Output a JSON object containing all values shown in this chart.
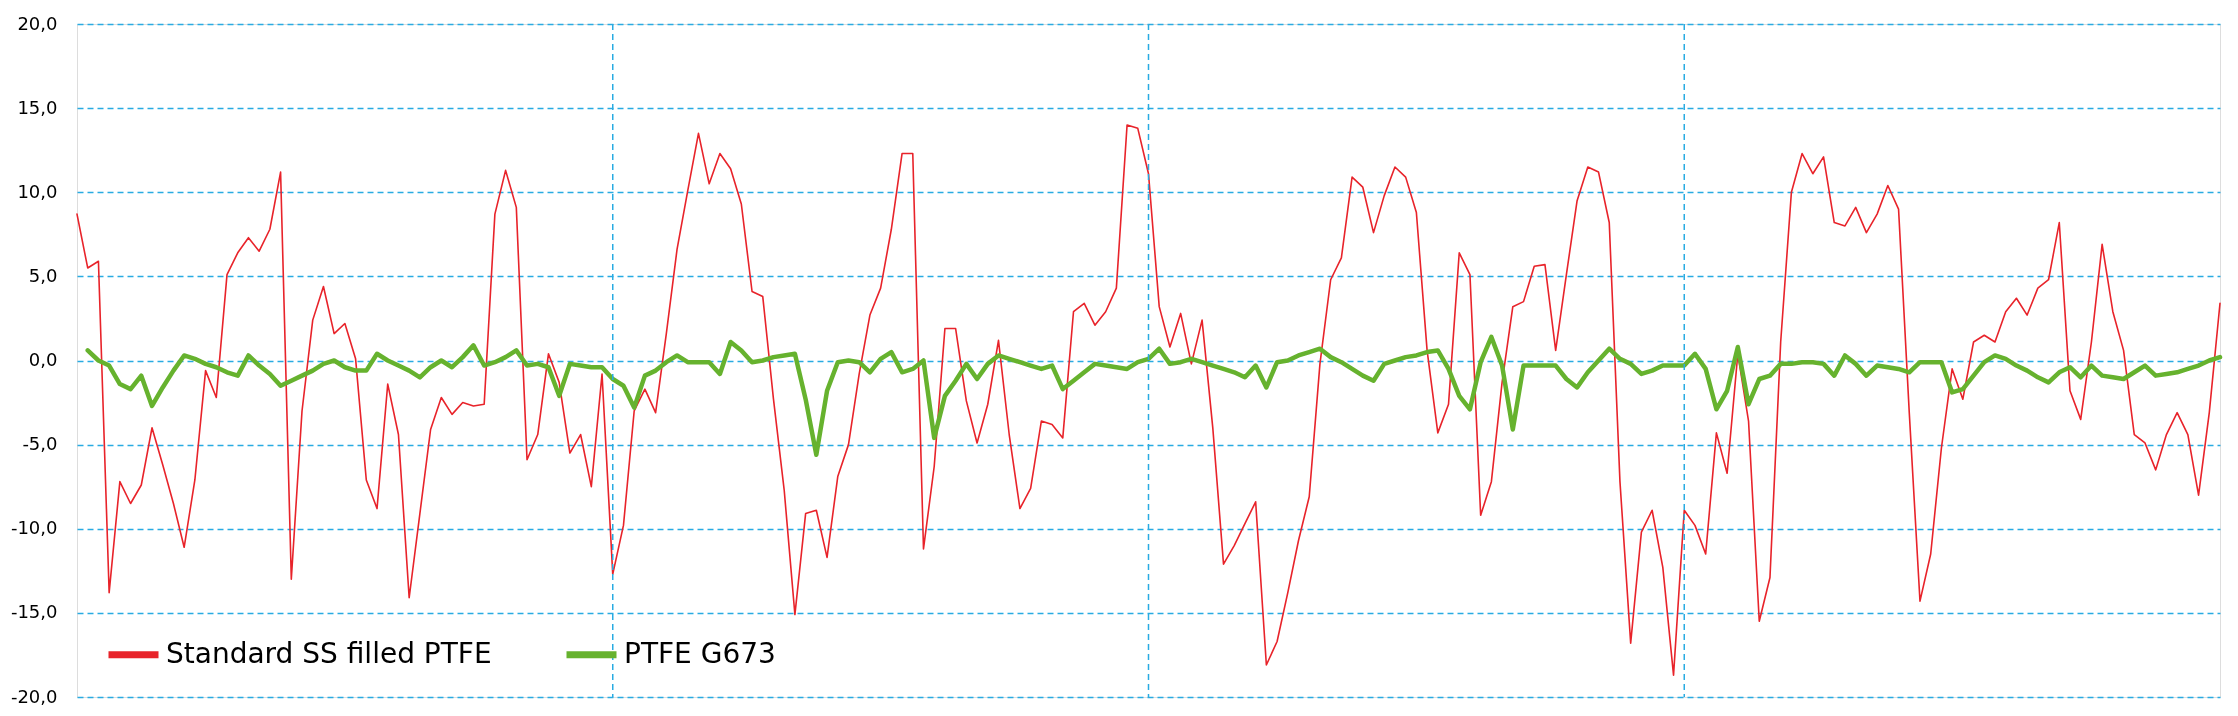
{
  "chart_data": {
    "type": "line",
    "categories": [
      null,
      null,
      null,
      null,
      null,
      null,
      null,
      null,
      null,
      null,
      null,
      null,
      null,
      null,
      null,
      null,
      null,
      null,
      null,
      null,
      null,
      null,
      null,
      null,
      null,
      null,
      null,
      null,
      null,
      null,
      null,
      null,
      null,
      null,
      null,
      null,
      null,
      null,
      null,
      null,
      null,
      null,
      null,
      null,
      null,
      null,
      null,
      null,
      null,
      null,
      null,
      null,
      null,
      null,
      null,
      null,
      null,
      null,
      null,
      null,
      null,
      null,
      null,
      null,
      null,
      null,
      null,
      null,
      null,
      null,
      null,
      null,
      null,
      null,
      null,
      null,
      null,
      null,
      null,
      null,
      null,
      null,
      null,
      null,
      null,
      null,
      null,
      null,
      null,
      null,
      null,
      null,
      null,
      null,
      null,
      null,
      null,
      null,
      null,
      null,
      null,
      null,
      null,
      null,
      null,
      null,
      null,
      null,
      null,
      null,
      null,
      null,
      null,
      null,
      null,
      null,
      null,
      null,
      null,
      null,
      null,
      null,
      null,
      null,
      null,
      null,
      null,
      null,
      null,
      null,
      null,
      null,
      null,
      null,
      null,
      null,
      null,
      null,
      null,
      null,
      null,
      null,
      null,
      null,
      null,
      null,
      null,
      null,
      null,
      null,
      null,
      null,
      null,
      null,
      null,
      null,
      null,
      null,
      null,
      null,
      null,
      null,
      null,
      null,
      null,
      null,
      null,
      null,
      null,
      null,
      null,
      null,
      null,
      null,
      null,
      null,
      null,
      null,
      null,
      null,
      null,
      null,
      null,
      null,
      null,
      null,
      null,
      null,
      null,
      null,
      null,
      null,
      null,
      null,
      null,
      null,
      null,
      null,
      null,
      null,
      null
    ],
    "ylim": [
      -20,
      20
    ],
    "yticks": [
      {
        "value": -20,
        "label": "-20,0"
      },
      {
        "value": -15,
        "label": "-15,0"
      },
      {
        "value": -10,
        "label": "-10,0"
      },
      {
        "value": -5,
        "label": "-5,0"
      },
      {
        "value": 0,
        "label": "0,0"
      },
      {
        "value": 5,
        "label": "5,0"
      },
      {
        "value": 10,
        "label": "10,0"
      },
      {
        "value": 15,
        "label": "15,0"
      },
      {
        "value": 20,
        "label": "20,0"
      }
    ],
    "tick_labels": "y",
    "grid": "y",
    "legend": "bottom left",
    "line_style": "solid",
    "series": [
      {
        "name": "Standard SS filled PTFE",
        "color": "#e8232a",
        "values": [
          8.7,
          5.5,
          5.9,
          -13.8,
          -7.2,
          -8.5,
          -7.4,
          -4.0,
          -6.2,
          -8.5,
          -11.1,
          -7.1,
          -0.6,
          -2.2,
          5.1,
          6.4,
          7.3,
          6.5,
          7.8,
          11.2,
          -13.0,
          -3.0,
          2.4,
          4.4,
          1.6,
          2.2,
          0.1,
          -7.1,
          -8.8,
          -1.4,
          -4.4,
          -14.1,
          -9.1,
          -4.1,
          -2.2,
          -3.2,
          -2.5,
          -2.7,
          -2.6,
          8.7,
          11.3,
          9.1,
          -5.9,
          -4.4,
          0.4,
          -1.3,
          -5.5,
          -4.4,
          -7.5,
          -0.8,
          -12.7,
          -9.8,
          -3.0,
          -1.7,
          -3.1,
          1.6,
          6.6,
          10.1,
          13.5,
          10.5,
          12.3,
          11.4,
          9.3,
          4.1,
          3.8,
          -2.3,
          -7.7,
          -15.1,
          -9.1,
          -8.9,
          -11.7,
          -6.9,
          -5.0,
          -0.8,
          2.7,
          4.3,
          7.8,
          12.3,
          12.3,
          -11.2,
          -6.3,
          1.9,
          1.9,
          -2.4,
          -4.9,
          -2.6,
          1.2,
          -4.4,
          -8.8,
          -7.6,
          -3.6,
          -3.8,
          -4.6,
          2.9,
          3.4,
          2.1,
          2.9,
          4.3,
          14.0,
          13.8,
          11.1,
          3.2,
          0.8,
          2.8,
          -0.2,
          2.4,
          -4.0,
          -12.1,
          -11.0,
          -9.7,
          -8.4,
          -18.1,
          -16.7,
          -13.8,
          -10.7,
          -8.1,
          -0.2,
          4.8,
          6.1,
          10.9,
          10.3,
          7.6,
          9.8,
          11.5,
          10.9,
          8.8,
          0.6,
          -4.3,
          -2.6,
          6.4,
          5.1,
          -9.2,
          -7.2,
          -1.3,
          3.2,
          3.5,
          5.6,
          5.7,
          0.6,
          5.1,
          9.5,
          11.5,
          11.2,
          8.2,
          -7.2,
          -16.8,
          -10.2,
          -8.9,
          -12.3,
          -18.7,
          -8.9,
          -9.8,
          -11.5,
          -4.3,
          -6.7,
          0.4,
          -3.6,
          -15.5,
          -12.9,
          1.1,
          10.0,
          12.3,
          11.1,
          12.1,
          8.2,
          8.0,
          9.1,
          7.6,
          8.7,
          10.4,
          9.0,
          -3.1,
          -14.3,
          -11.5,
          -5.2,
          -0.5,
          -2.3,
          1.1,
          1.5,
          1.1,
          2.9,
          3.7,
          2.7,
          4.3,
          4.8,
          8.2,
          -1.8,
          -3.5,
          1.1,
          6.9,
          2.9,
          0.6,
          -4.4,
          -4.9,
          -6.5,
          -4.4,
          -3.1,
          -4.4,
          -8.0,
          -3.1,
          3.4
        ]
      },
      {
        "name": "PTFE G673",
        "color": "#66b22e",
        "values": [
          null,
          0.6,
          0.0,
          -0.3,
          -1.4,
          -1.7,
          -0.9,
          -2.7,
          -1.6,
          -0.6,
          0.3,
          0.1,
          -0.2,
          -0.4,
          -0.7,
          -0.9,
          0.3,
          -0.3,
          -0.8,
          -1.5,
          -1.2,
          -0.9,
          -0.6,
          -0.2,
          0.0,
          -0.4,
          -0.6,
          -0.6,
          0.4,
          0.0,
          -0.3,
          -0.6,
          -1.0,
          -0.4,
          0.0,
          -0.4,
          0.2,
          0.9,
          -0.3,
          -0.1,
          0.2,
          0.6,
          -0.3,
          -0.2,
          -0.4,
          -2.1,
          -0.2,
          -0.3,
          -0.4,
          -0.4,
          -1.1,
          -1.5,
          -2.8,
          -0.9,
          -0.6,
          -0.1,
          0.3,
          -0.1,
          -0.1,
          -0.1,
          -0.8,
          1.1,
          0.6,
          -0.1,
          0.0,
          0.2,
          0.3,
          0.4,
          -2.3,
          -5.6,
          -1.8,
          -0.1,
          0.0,
          -0.1,
          -0.7,
          0.1,
          0.5,
          -0.7,
          -0.5,
          0.0,
          -4.6,
          -2.1,
          -1.2,
          -0.2,
          -1.1,
          -0.2,
          0.3,
          0.1,
          -0.1,
          -0.3,
          -0.5,
          -0.3,
          -1.7,
          -1.2,
          -0.7,
          -0.2,
          -0.3,
          -0.4,
          -0.5,
          -0.1,
          0.1,
          0.7,
          -0.2,
          -0.1,
          0.1,
          -0.1,
          -0.3,
          -0.5,
          -0.7,
          -1.0,
          -0.3,
          -1.6,
          -0.1,
          0.0,
          0.3,
          0.5,
          0.7,
          0.2,
          -0.1,
          -0.5,
          -0.9,
          -1.2,
          -0.2,
          0.0,
          0.2,
          0.3,
          0.5,
          0.6,
          -0.5,
          -2.1,
          -2.9,
          -0.1,
          1.4,
          -0.3,
          -4.1,
          -0.3,
          -0.3,
          -0.3,
          -0.3,
          -1.1,
          -1.6,
          -0.7,
          0.0,
          0.7,
          0.1,
          -0.2,
          -0.8,
          -0.6,
          -0.3,
          -0.3,
          -0.3,
          0.4,
          -0.5,
          -2.9,
          -1.8,
          0.8,
          -2.6,
          -1.1,
          -0.9,
          -0.2,
          -0.2,
          -0.1,
          -0.1,
          -0.2,
          -0.9,
          0.3,
          -0.2,
          -0.9,
          -0.3,
          -0.4,
          -0.5,
          -0.7,
          -0.1,
          -0.1,
          -0.1,
          -1.9,
          -1.7,
          -0.9,
          -0.1,
          0.3,
          0.1,
          -0.3,
          -0.6,
          -1.0,
          -1.3,
          -0.7,
          -0.4,
          -1.0,
          -0.3,
          -0.9,
          -1.0,
          -1.1,
          -0.7,
          -0.3,
          -0.9,
          -0.8,
          -0.7,
          -0.5,
          -0.3,
          0.0,
          0.2
        ]
      }
    ]
  }
}
